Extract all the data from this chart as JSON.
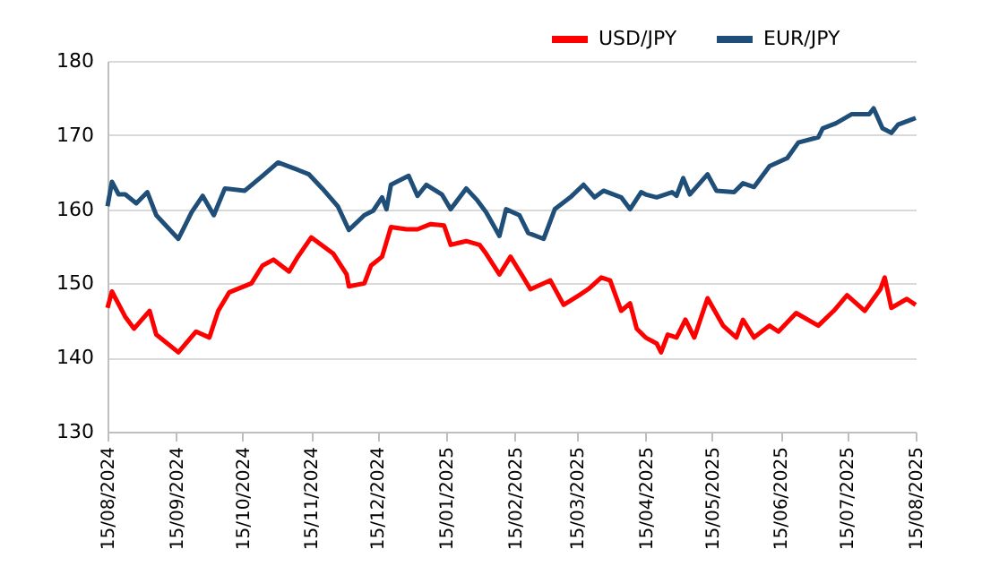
{
  "chart_data": {
    "type": "line",
    "xlim": [
      "2024-08-15",
      "2025-08-15"
    ],
    "xticks": [
      {
        "value": "2024-08-15",
        "label": "15/08/2024"
      },
      {
        "value": "2024-09-15",
        "label": "15/09/2024"
      },
      {
        "value": "2024-10-15",
        "label": "15/10/2024"
      },
      {
        "value": "2024-11-15",
        "label": "15/11/2024"
      },
      {
        "value": "2024-12-15",
        "label": "15/12/2024"
      },
      {
        "value": "2025-01-15",
        "label": "15/01/2025"
      },
      {
        "value": "2025-02-15",
        "label": "15/02/2025"
      },
      {
        "value": "2025-03-15",
        "label": "15/03/2025"
      },
      {
        "value": "2025-04-15",
        "label": "15/04/2025"
      },
      {
        "value": "2025-05-15",
        "label": "15/05/2025"
      },
      {
        "value": "2025-06-15",
        "label": "15/06/2025"
      },
      {
        "value": "2025-07-15",
        "label": "15/07/2025"
      },
      {
        "value": "2025-08-15",
        "label": "15/08/2025"
      }
    ],
    "ylim": [
      130,
      180
    ],
    "yticks": [
      130,
      140,
      150,
      160,
      170,
      180
    ],
    "grid": "y",
    "legend": "top right",
    "marker": "none",
    "line_style": "solid",
    "series": [
      {
        "name": "USD/JPY",
        "color": "#ff0000",
        "x": [
          "2024-08-15",
          "2024-08-17",
          "2024-08-23",
          "2024-08-27",
          "2024-09-03",
          "2024-09-06",
          "2024-09-16",
          "2024-09-24",
          "2024-09-30",
          "2024-10-04",
          "2024-10-09",
          "2024-10-19",
          "2024-10-24",
          "2024-10-29",
          "2024-11-05",
          "2024-11-09",
          "2024-11-15",
          "2024-11-25",
          "2024-12-01",
          "2024-12-02",
          "2024-12-09",
          "2024-12-12",
          "2024-12-17",
          "2024-12-21",
          "2024-12-28",
          "2025-01-02",
          "2025-01-08",
          "2025-01-14",
          "2025-01-17",
          "2025-01-24",
          "2025-01-30",
          "2025-02-02",
          "2025-02-08",
          "2025-02-13",
          "2025-02-18",
          "2025-02-22",
          "2025-03-03",
          "2025-03-09",
          "2025-03-16",
          "2025-03-20",
          "2025-03-26",
          "2025-03-30",
          "2025-04-04",
          "2025-04-08",
          "2025-04-11",
          "2025-04-15",
          "2025-04-20",
          "2025-04-22",
          "2025-04-25",
          "2025-04-29",
          "2025-05-03",
          "2025-05-07",
          "2025-05-13",
          "2025-05-20",
          "2025-05-26",
          "2025-05-29",
          "2025-06-03",
          "2025-06-10",
          "2025-06-14",
          "2025-06-22",
          "2025-07-02",
          "2025-07-09",
          "2025-07-15",
          "2025-07-23",
          "2025-07-30",
          "2025-08-01",
          "2025-08-04",
          "2025-08-11",
          "2025-08-15"
        ],
        "values": [
          146.7,
          148.9,
          145.5,
          143.9,
          146.3,
          143.1,
          140.7,
          143.5,
          142.7,
          146.3,
          148.8,
          150,
          152.4,
          153.2,
          151.6,
          153.6,
          156.2,
          154,
          151.2,
          149.6,
          150,
          152.4,
          153.6,
          157.6,
          157.3,
          157.3,
          158,
          157.8,
          155.2,
          155.7,
          155.2,
          154,
          151.2,
          153.6,
          151.2,
          149.2,
          150.4,
          147.1,
          148.4,
          149.2,
          150.8,
          150.4,
          146.3,
          147.3,
          143.9,
          142.7,
          141.9,
          140.7,
          143.1,
          142.7,
          145.1,
          142.7,
          148,
          144.3,
          142.7,
          145.1,
          142.7,
          144.3,
          143.5,
          146,
          144.3,
          146.3,
          148.4,
          146.3,
          149.2,
          150.8,
          146.7,
          147.9,
          147.1
        ]
      },
      {
        "name": "EUR/JPY",
        "color": "#1f4e79",
        "x": [
          "2024-08-15",
          "2024-08-17",
          "2024-08-20",
          "2024-08-23",
          "2024-08-28",
          "2024-09-02",
          "2024-09-06",
          "2024-09-11",
          "2024-09-16",
          "2024-09-22",
          "2024-09-27",
          "2024-10-02",
          "2024-10-07",
          "2024-10-16",
          "2024-10-24",
          "2024-10-31",
          "2024-11-09",
          "2024-11-14",
          "2024-11-20",
          "2024-11-27",
          "2024-12-02",
          "2024-12-09",
          "2024-12-13",
          "2024-12-17",
          "2024-12-19",
          "2024-12-21",
          "2024-12-29",
          "2025-01-02",
          "2025-01-06",
          "2025-01-13",
          "2025-01-17",
          "2025-01-24",
          "2025-01-29",
          "2025-02-02",
          "2025-02-08",
          "2025-02-11",
          "2025-02-17",
          "2025-02-21",
          "2025-02-28",
          "2025-03-05",
          "2025-03-12",
          "2025-03-18",
          "2025-03-23",
          "2025-03-27",
          "2025-04-04",
          "2025-04-08",
          "2025-04-13",
          "2025-04-15",
          "2025-04-20",
          "2025-04-27",
          "2025-04-29",
          "2025-05-02",
          "2025-05-05",
          "2025-05-13",
          "2025-05-17",
          "2025-05-25",
          "2025-05-29",
          "2025-06-03",
          "2025-06-10",
          "2025-06-18",
          "2025-06-23",
          "2025-07-02",
          "2025-07-04",
          "2025-07-10",
          "2025-07-17",
          "2025-07-25",
          "2025-07-27",
          "2025-07-31",
          "2025-08-04",
          "2025-08-07",
          "2025-08-15"
        ],
        "values": [
          160.4,
          163.7,
          162,
          162,
          160.8,
          162.3,
          159.2,
          157.6,
          156,
          159.6,
          161.8,
          159.2,
          162.8,
          162.5,
          164.5,
          166.3,
          165.3,
          164.7,
          162.8,
          160.4,
          157.2,
          159.2,
          159.8,
          161.6,
          160,
          163.3,
          164.5,
          161.8,
          163.3,
          162,
          160,
          162.8,
          161.2,
          159.6,
          156.4,
          160,
          159.2,
          156.8,
          156,
          160,
          161.6,
          163.3,
          161.6,
          162.5,
          161.6,
          160,
          162.3,
          162,
          161.6,
          162.3,
          161.8,
          164.2,
          162,
          164.7,
          162.5,
          162.3,
          163.5,
          163,
          165.8,
          166.9,
          169,
          169.7,
          170.9,
          171.6,
          172.8,
          172.8,
          173.6,
          170.9,
          170.3,
          171.4,
          172.3
        ]
      }
    ]
  }
}
